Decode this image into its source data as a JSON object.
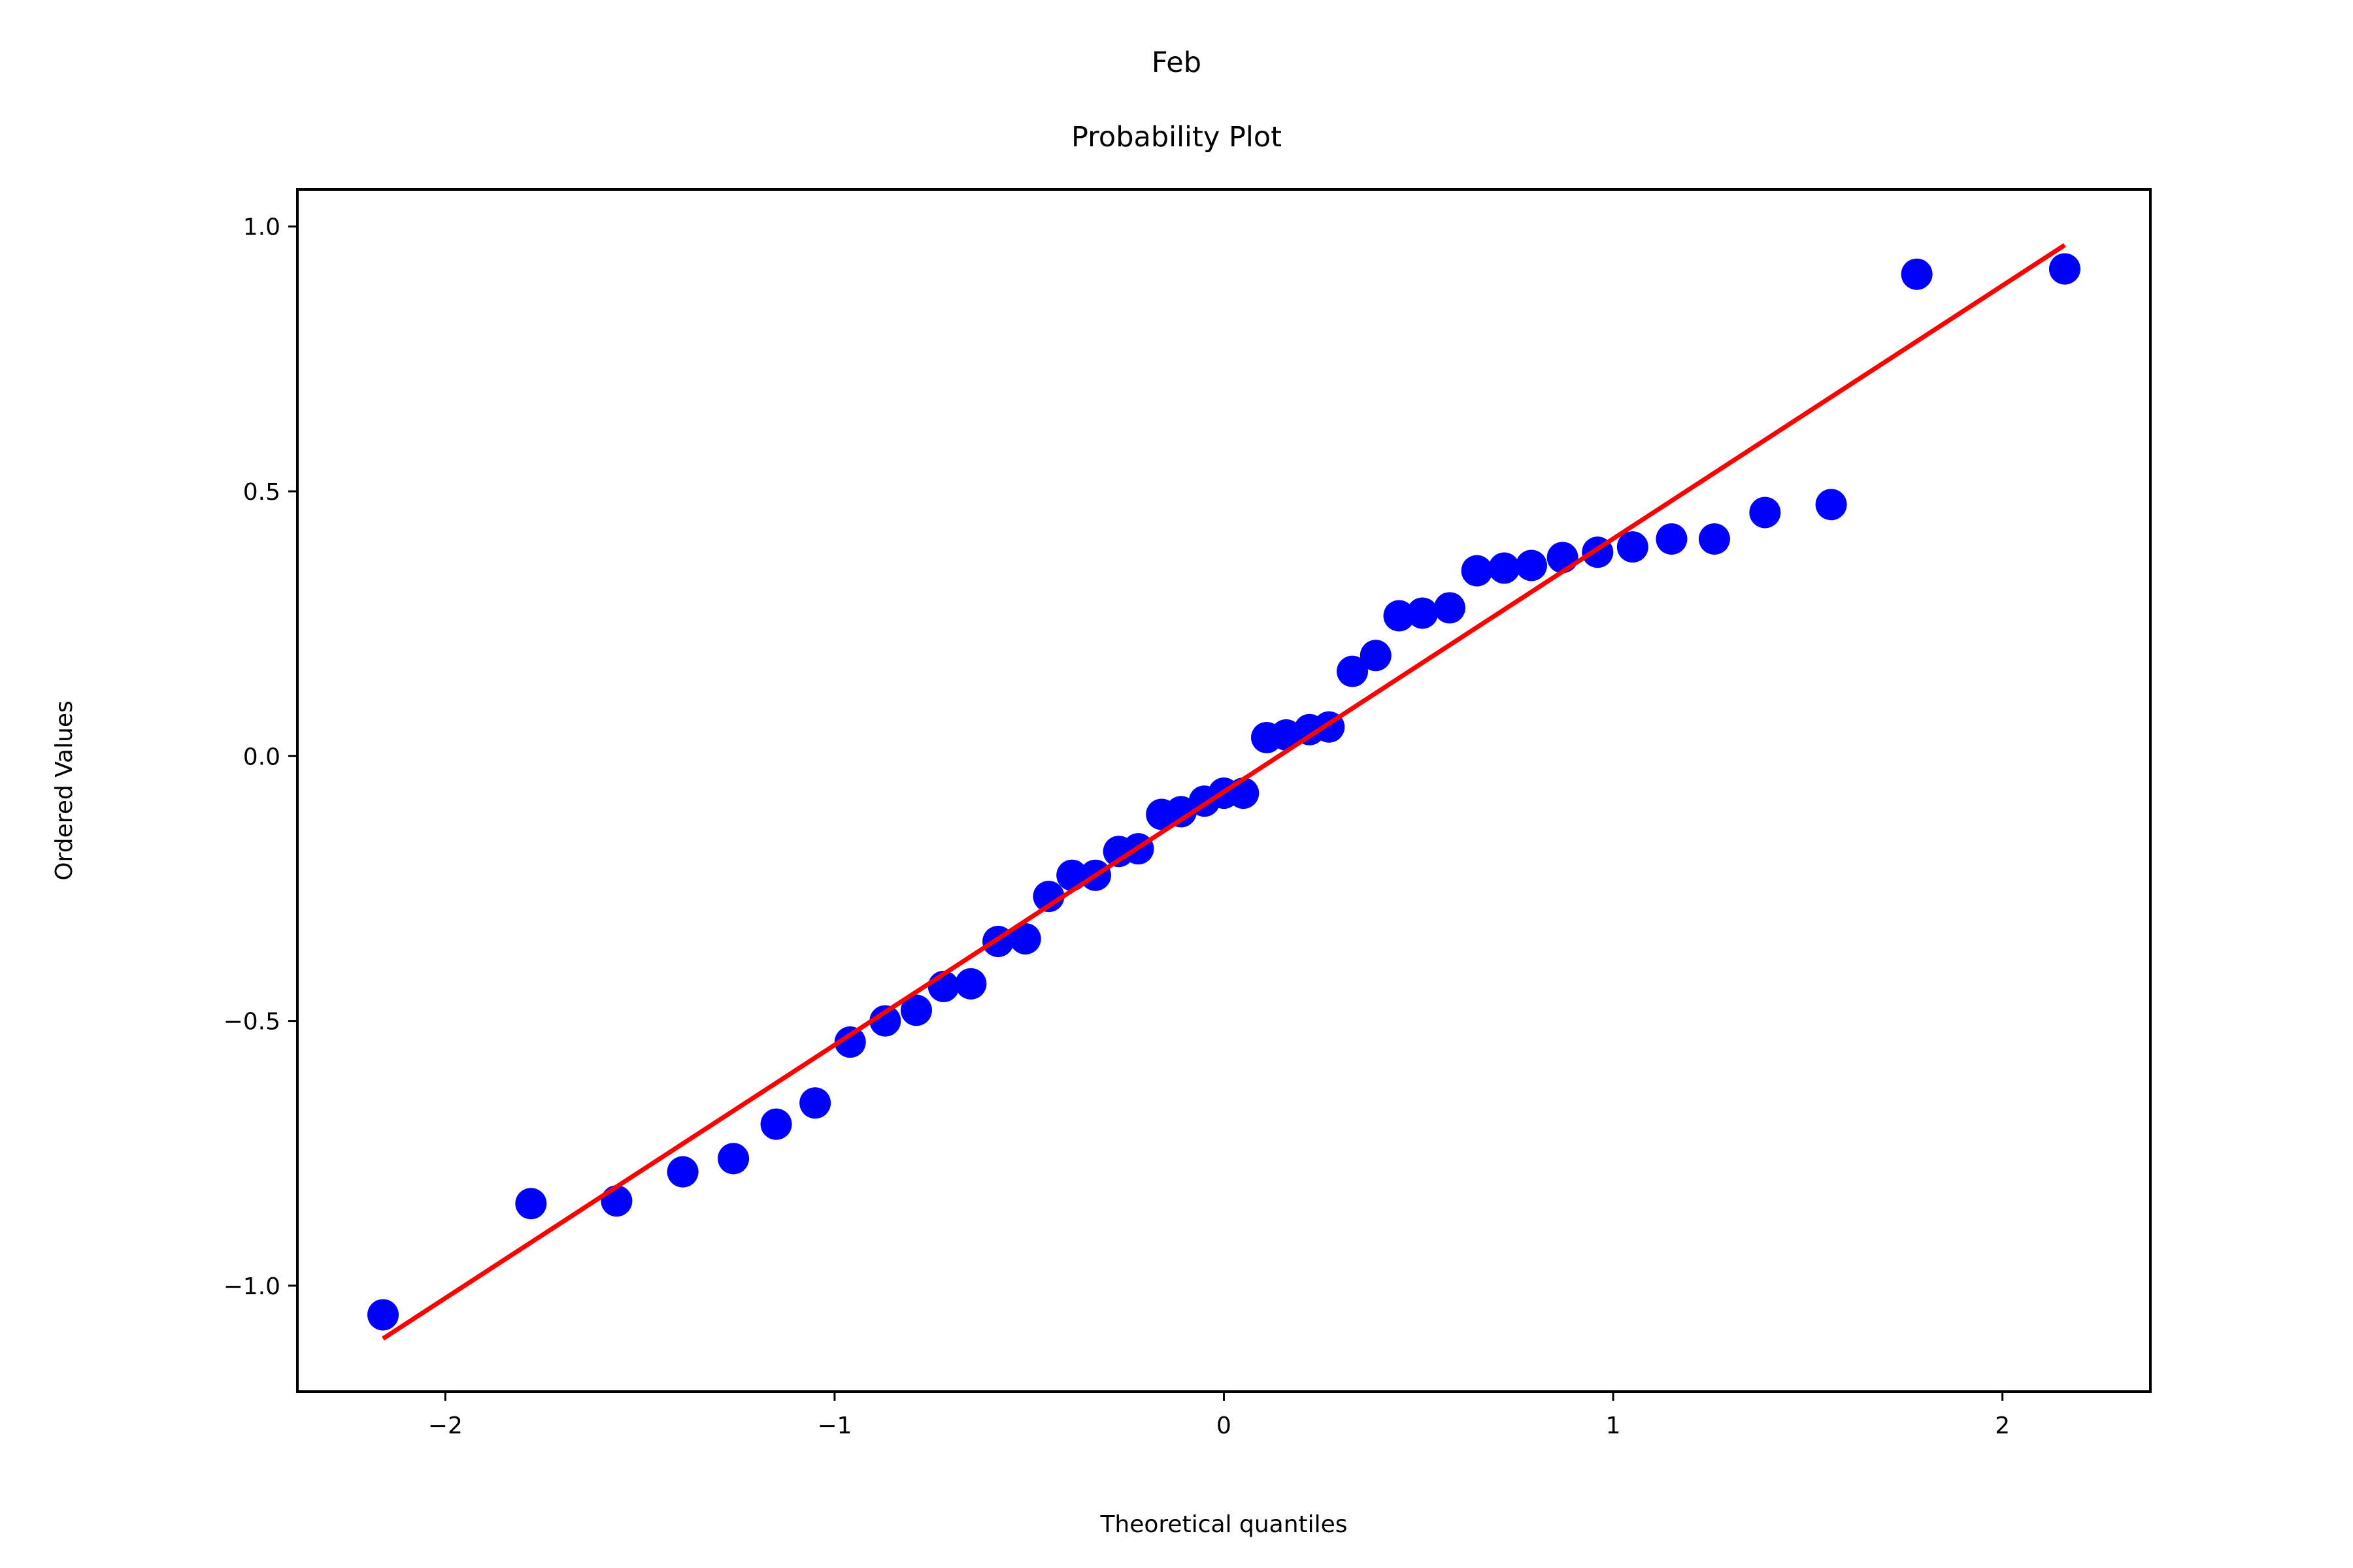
{
  "chart_data": {
    "type": "scatter",
    "title": "Feb",
    "subtitle": "Probability Plot",
    "xlabel": "Theoretical quantiles",
    "ylabel": "Ordered Values",
    "xlim": [
      -2.38,
      2.38
    ],
    "ylim": [
      -1.2,
      1.07
    ],
    "xticks": [
      {
        "value": -2,
        "label": "−2"
      },
      {
        "value": -1,
        "label": "−1"
      },
      {
        "value": 0,
        "label": "0"
      },
      {
        "value": 1,
        "label": "1"
      },
      {
        "value": 2,
        "label": "2"
      }
    ],
    "yticks": [
      {
        "value": -1.0,
        "label": "−1.0"
      },
      {
        "value": -0.5,
        "label": "−0.5"
      },
      {
        "value": 0.0,
        "label": "0.0"
      },
      {
        "value": 0.5,
        "label": "0.5"
      },
      {
        "value": 1.0,
        "label": "1.0"
      }
    ],
    "grid": false,
    "series": [
      {
        "color": "#0000ff",
        "points": [
          {
            "x": -2.16,
            "y": -1.055
          },
          {
            "x": -1.78,
            "y": -0.845
          },
          {
            "x": -1.56,
            "y": -0.84
          },
          {
            "x": -1.39,
            "y": -0.785
          },
          {
            "x": -1.26,
            "y": -0.76
          },
          {
            "x": -1.15,
            "y": -0.695
          },
          {
            "x": -1.05,
            "y": -0.655
          },
          {
            "x": -0.96,
            "y": -0.54
          },
          {
            "x": -0.87,
            "y": -0.5
          },
          {
            "x": -0.79,
            "y": -0.48
          },
          {
            "x": -0.72,
            "y": -0.435
          },
          {
            "x": -0.65,
            "y": -0.43
          },
          {
            "x": -0.58,
            "y": -0.35
          },
          {
            "x": -0.51,
            "y": -0.345
          },
          {
            "x": -0.45,
            "y": -0.265
          },
          {
            "x": -0.39,
            "y": -0.225
          },
          {
            "x": -0.33,
            "y": -0.225
          },
          {
            "x": -0.27,
            "y": -0.18
          },
          {
            "x": -0.22,
            "y": -0.175
          },
          {
            "x": -0.16,
            "y": -0.11
          },
          {
            "x": -0.11,
            "y": -0.105
          },
          {
            "x": -0.05,
            "y": -0.085
          },
          {
            "x": 0.0,
            "y": -0.07
          },
          {
            "x": 0.05,
            "y": -0.07
          },
          {
            "x": 0.11,
            "y": 0.035
          },
          {
            "x": 0.16,
            "y": 0.04
          },
          {
            "x": 0.22,
            "y": 0.05
          },
          {
            "x": 0.27,
            "y": 0.055
          },
          {
            "x": 0.33,
            "y": 0.16
          },
          {
            "x": 0.39,
            "y": 0.19
          },
          {
            "x": 0.45,
            "y": 0.265
          },
          {
            "x": 0.51,
            "y": 0.27
          },
          {
            "x": 0.58,
            "y": 0.28
          },
          {
            "x": 0.65,
            "y": 0.35
          },
          {
            "x": 0.72,
            "y": 0.355
          },
          {
            "x": 0.79,
            "y": 0.36
          },
          {
            "x": 0.87,
            "y": 0.375
          },
          {
            "x": 0.96,
            "y": 0.385
          },
          {
            "x": 1.05,
            "y": 0.395
          },
          {
            "x": 1.15,
            "y": 0.41
          },
          {
            "x": 1.26,
            "y": 0.41
          },
          {
            "x": 1.39,
            "y": 0.46
          },
          {
            "x": 1.56,
            "y": 0.475
          },
          {
            "x": 1.78,
            "y": 0.91
          },
          {
            "x": 2.16,
            "y": 0.92
          }
        ]
      }
    ],
    "fit_line": {
      "color": "#ff0000",
      "from": {
        "x": -2.16,
        "y": -1.1
      },
      "to": {
        "x": 2.16,
        "y": 0.965
      }
    }
  }
}
